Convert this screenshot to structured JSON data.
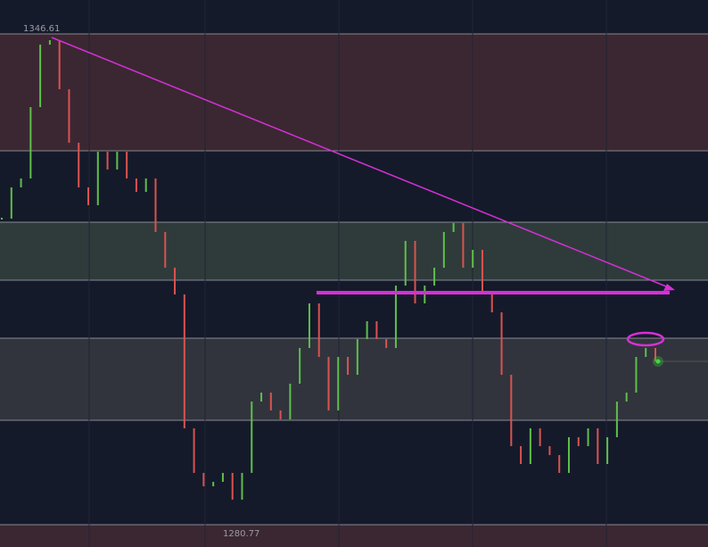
{
  "chart_data": {
    "type": "price",
    "high_label": 1346.61,
    "low_label": 1280.77,
    "ylim": [
      1277.78,
      1351.16
    ],
    "up_color": "#5fbf4a",
    "down_color": "#d9534f",
    "zones": [
      {
        "range": [
          1330.93,
          1346.61
        ],
        "color": "rgba(120,60,62,0.38)"
      },
      {
        "range": [
          1313.57,
          1321.35
        ],
        "color": "rgba(80,100,80,0.45)"
      },
      {
        "range": [
          1294.78,
          1305.79
        ],
        "color": "rgba(85,85,85,0.45)"
      },
      {
        "range": [
          1277.78,
          1280.77
        ],
        "color": "rgba(120,60,62,0.38)"
      }
    ],
    "values": [
      1321.83,
      1326.02,
      1327.22,
      1336.79,
      1345.17,
      1345.77,
      1339.19,
      1332.01,
      1326.02,
      1323.63,
      1330.81,
      1328.42,
      1330.81,
      1327.22,
      1325.42,
      1327.22,
      1320.04,
      1315.25,
      1311.66,
      1293.7,
      1287.72,
      1285.92,
      1286.52,
      1287.72,
      1284.13,
      1287.72,
      1297.29,
      1298.49,
      1296.1,
      1294.9,
      1299.69,
      1304.48,
      1310.46,
      1303.28,
      1296.1,
      1303.28,
      1300.88,
      1305.67,
      1308.07,
      1305.67,
      1304.48,
      1312.85,
      1318.84,
      1310.46,
      1312.85,
      1315.25,
      1320.04,
      1321.23,
      1315.25,
      1317.64,
      1311.66,
      1309.26,
      1300.88,
      1291.31,
      1288.91,
      1293.7,
      1291.31,
      1290.11,
      1287.72,
      1292.51,
      1291.31,
      1293.7,
      1288.91,
      1292.51,
      1297.29,
      1298.49,
      1303.28,
      1304.48,
      1302.68
    ]
  }
}
